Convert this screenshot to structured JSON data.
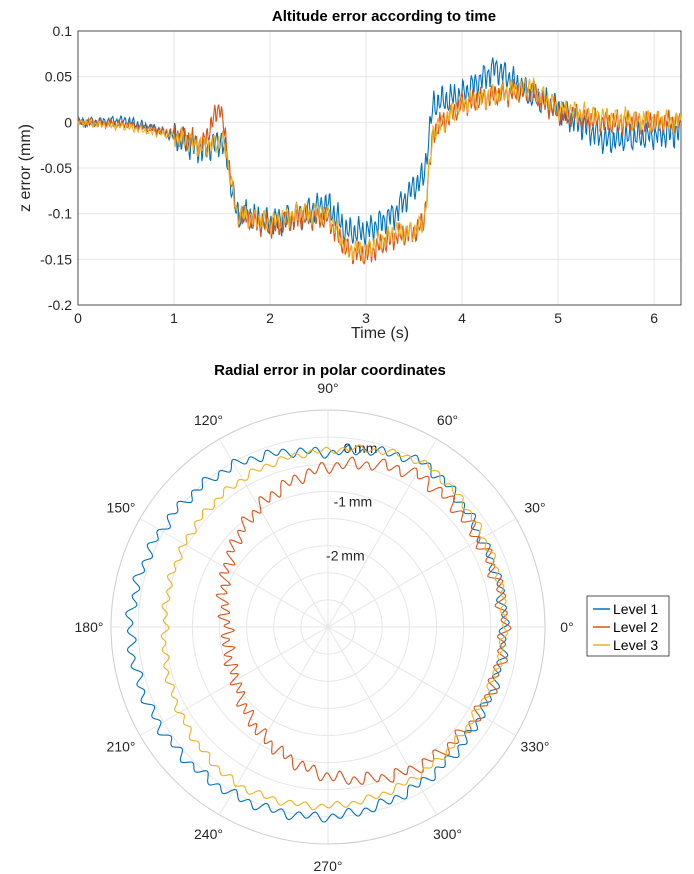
{
  "charts": {
    "altitude": {
      "title": "Altitude error according to time",
      "xlabel": "Time (s)",
      "ylabel": "z error (mm)",
      "xticks": [
        "0",
        "1",
        "2",
        "3",
        "4",
        "5",
        "6"
      ],
      "yticks": [
        "0.1",
        "0.05",
        "0",
        "-0.05",
        "-0.1",
        "-0.15",
        "-0.2"
      ]
    },
    "polar": {
      "title": "Radial error in polar coordinates",
      "angle_ticks": [
        "0°",
        "30°",
        "60°",
        "90°",
        "120°",
        "150°",
        "180°",
        "210°",
        "240°",
        "270°",
        "300°",
        "330°"
      ],
      "radius_ticks": [
        "0",
        "-1",
        "-2"
      ],
      "radius_unit": "mm"
    },
    "legend": [
      "Level 1",
      "Level 2",
      "Level 3"
    ]
  },
  "colors": {
    "Level 1": "#0072BD",
    "Level 2": "#D95319",
    "Level 3": "#EDB120",
    "grid": "#e6e6e6",
    "axis": "#262626"
  },
  "chart_data": [
    {
      "type": "line",
      "title": "Altitude error according to time",
      "xlabel": "Time (s)",
      "ylabel": "z error (mm)",
      "xlim": [
        0,
        6.28
      ],
      "ylim": [
        -0.2,
        0.1
      ],
      "grid": true,
      "series": [
        {
          "name": "Level 1",
          "x": [
            0,
            0.5,
            1.0,
            1.3,
            1.5,
            1.55,
            1.65,
            2.0,
            2.3,
            2.6,
            2.8,
            3.0,
            3.3,
            3.5,
            3.6,
            3.7,
            4.0,
            4.35,
            4.7,
            5.0,
            5.5,
            6.28
          ],
          "y": [
            0,
            0.002,
            -0.015,
            -0.03,
            -0.02,
            -0.04,
            -0.1,
            -0.11,
            -0.1,
            -0.09,
            -0.12,
            -0.12,
            -0.1,
            -0.07,
            -0.06,
            0.02,
            0.03,
            0.06,
            0.03,
            0.015,
            -0.02,
            -0.01
          ]
        },
        {
          "name": "Level 2",
          "x": [
            0,
            0.5,
            1.0,
            1.3,
            1.48,
            1.55,
            1.65,
            2.0,
            2.3,
            2.6,
            2.8,
            3.0,
            3.3,
            3.5,
            3.6,
            3.7,
            4.0,
            4.35,
            4.7,
            5.0,
            5.5,
            6.28
          ],
          "y": [
            0,
            -0.002,
            -0.012,
            -0.025,
            0.02,
            -0.03,
            -0.1,
            -0.115,
            -0.105,
            -0.105,
            -0.14,
            -0.145,
            -0.125,
            -0.12,
            -0.11,
            -0.01,
            0.02,
            0.03,
            0.035,
            0.01,
            0.0,
            0.0
          ]
        },
        {
          "name": "Level 3",
          "x": [
            0,
            0.5,
            1.0,
            1.3,
            1.5,
            1.55,
            1.65,
            2.0,
            2.3,
            2.6,
            2.8,
            3.0,
            3.3,
            3.5,
            3.6,
            3.7,
            4.0,
            4.35,
            4.7,
            5.0,
            5.5,
            6.28
          ],
          "y": [
            0,
            -0.005,
            -0.015,
            -0.028,
            -0.02,
            -0.035,
            -0.1,
            -0.11,
            -0.1,
            -0.1,
            -0.14,
            -0.14,
            -0.12,
            -0.12,
            -0.11,
            -0.01,
            0.02,
            0.03,
            0.04,
            0.015,
            0.005,
            0.0
          ]
        }
      ]
    },
    {
      "type": "polar",
      "title": "Radial error in polar coordinates",
      "theta_unit": "degrees",
      "r_unit": "mm",
      "rlim": [
        -3.5,
        0.5
      ],
      "rticks": [
        0,
        -1,
        -2
      ],
      "legend_position": "right",
      "grid": true,
      "series": [
        {
          "name": "Level 1",
          "theta_deg": [
            0,
            30,
            60,
            90,
            120,
            150,
            180,
            210,
            240,
            270,
            300,
            330,
            360
          ],
          "r": [
            -0.25,
            -0.25,
            0.0,
            -0.3,
            -0.05,
            0.05,
            0.15,
            0.1,
            0.05,
            0.0,
            -0.15,
            -0.25,
            -0.25
          ]
        },
        {
          "name": "Level 2",
          "theta_deg": [
            0,
            30,
            60,
            90,
            120,
            150,
            180,
            210,
            240,
            270,
            300,
            330,
            360
          ],
          "r": [
            -0.25,
            -0.3,
            -0.25,
            -0.55,
            -0.95,
            -1.35,
            -1.65,
            -1.55,
            -1.15,
            -0.75,
            -0.45,
            -0.3,
            -0.25
          ]
        },
        {
          "name": "Level 3",
          "theta_deg": [
            0,
            30,
            60,
            90,
            120,
            150,
            180,
            210,
            240,
            270,
            300,
            330,
            360
          ],
          "r": [
            -0.25,
            -0.2,
            0.0,
            -0.25,
            -0.35,
            -0.45,
            -0.5,
            -0.35,
            -0.15,
            -0.2,
            -0.3,
            -0.35,
            -0.25
          ]
        }
      ]
    }
  ]
}
